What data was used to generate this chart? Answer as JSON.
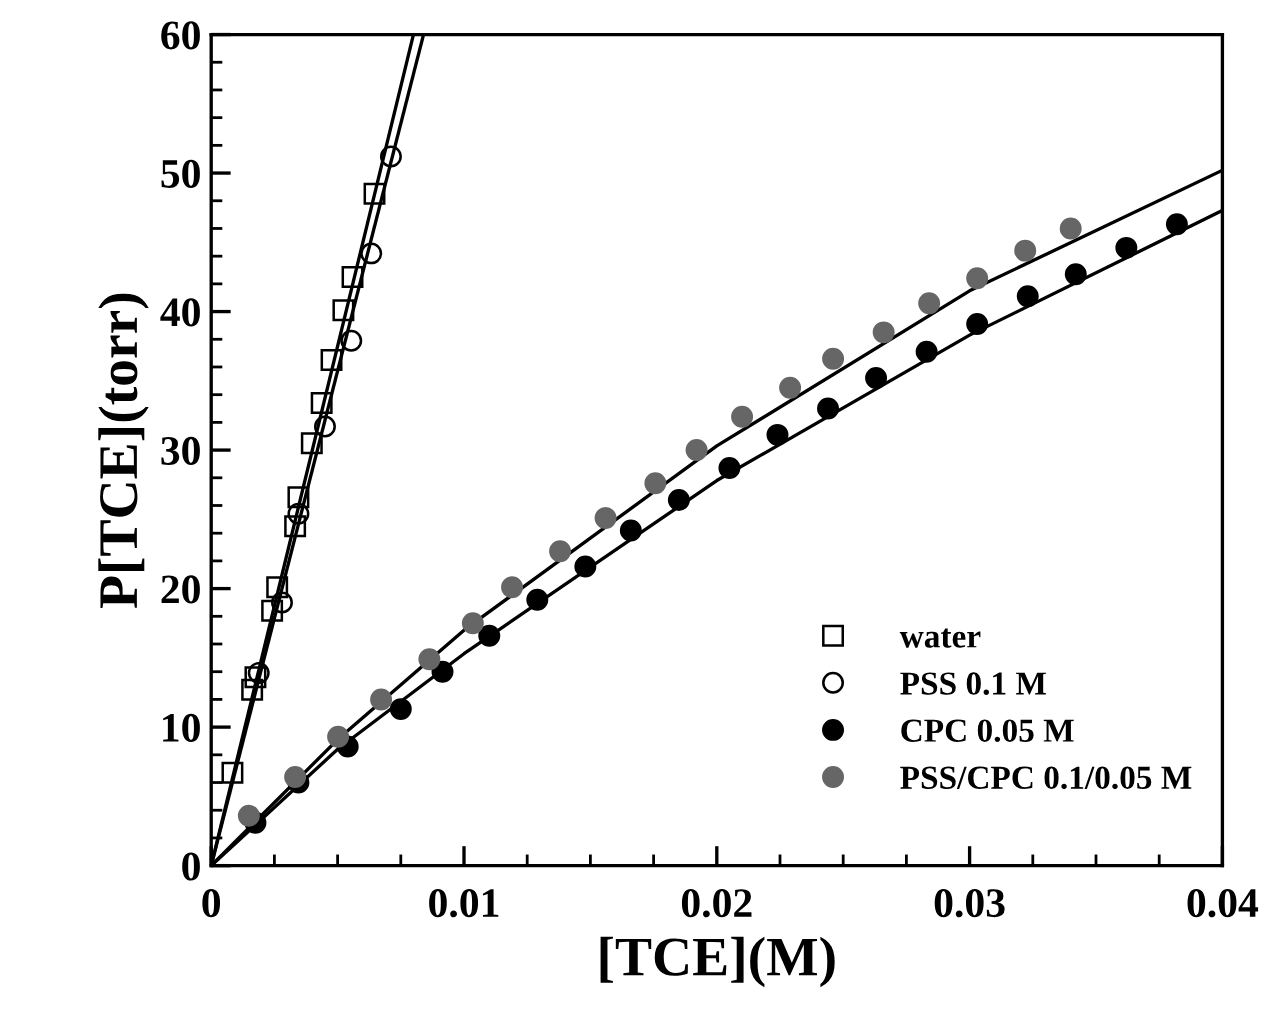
{
  "chart_data": {
    "type": "scatter",
    "xlabel": "[TCE](M)",
    "ylabel": "P[TCE](torr)",
    "xlim": [
      0,
      0.04
    ],
    "ylim": [
      0,
      60
    ],
    "xticks": [
      0,
      {
        "value": 0.0025,
        "label": null
      },
      {
        "value": 0.005,
        "label": null
      },
      {
        "value": 0.0075,
        "label": null
      },
      0.01,
      {
        "value": 0.0125,
        "label": null
      },
      {
        "value": 0.015,
        "label": null
      },
      {
        "value": 0.0175,
        "label": null
      },
      0.02,
      {
        "value": 0.0225,
        "label": null
      },
      {
        "value": 0.025,
        "label": null
      },
      {
        "value": 0.0275,
        "label": null
      },
      0.03,
      {
        "value": 0.0325,
        "label": null
      },
      {
        "value": 0.035,
        "label": null
      },
      {
        "value": 0.0375,
        "label": null
      },
      0.04
    ],
    "yticks": [
      0,
      {
        "value": 2,
        "label": null
      },
      {
        "value": 4,
        "label": null
      },
      {
        "value": 6,
        "label": null
      },
      {
        "value": 8,
        "label": null
      },
      10,
      {
        "value": 12,
        "label": null
      },
      {
        "value": 14,
        "label": null
      },
      {
        "value": 16,
        "label": null
      },
      {
        "value": 18,
        "label": null
      },
      20,
      {
        "value": 22,
        "label": null
      },
      {
        "value": 24,
        "label": null
      },
      {
        "value": 26,
        "label": null
      },
      {
        "value": 28,
        "label": null
      },
      30,
      {
        "value": 32,
        "label": null
      },
      {
        "value": 34,
        "label": null
      },
      {
        "value": 36,
        "label": null
      },
      {
        "value": 38,
        "label": null
      },
      40,
      {
        "value": 42,
        "label": null
      },
      {
        "value": 44,
        "label": null
      },
      {
        "value": 46,
        "label": null
      },
      {
        "value": 48,
        "label": null
      },
      50,
      {
        "value": 52,
        "label": null
      },
      {
        "value": 54,
        "label": null
      },
      {
        "value": 56,
        "label": null
      },
      {
        "value": 58,
        "label": null
      },
      60
    ],
    "grid": false,
    "legend": "bottom right",
    "series": [
      {
        "name": "water",
        "marker": "square",
        "color": "#000000",
        "x": [
          0.00084,
          0.00162,
          0.00175,
          0.00241,
          0.00261,
          0.00332,
          0.00345,
          0.00398,
          0.00437,
          0.00476,
          0.00523,
          0.00559,
          0.00646
        ],
        "values": [
          6.7,
          12.7,
          13.6,
          18.4,
          20.1,
          24.5,
          26.6,
          30.5,
          33.4,
          36.5,
          40.1,
          42.5,
          48.5
        ]
      },
      {
        "name": "PSS 0.1 M",
        "marker": "circle",
        "color": "#000000",
        "x": [
          0.00188,
          0.0028,
          0.00345,
          0.0045,
          0.00554,
          0.00633,
          0.00711
        ],
        "values": [
          13.9,
          19.0,
          25.4,
          31.7,
          37.9,
          44.2,
          51.2
        ]
      },
      {
        "name": "CPC 0.05 M",
        "marker": "circle",
        "color": "#000000",
        "x": [
          0.00175,
          0.00345,
          0.0054,
          0.0075,
          0.00915,
          0.011,
          0.0129,
          0.0148,
          0.0166,
          0.0185,
          0.0205,
          0.0224,
          0.0244,
          0.0263,
          0.0283,
          0.0303,
          0.0323,
          0.0342,
          0.0362,
          0.0382
        ],
        "values": [
          3.1,
          6.0,
          8.6,
          11.3,
          14.0,
          16.6,
          19.2,
          21.6,
          24.2,
          26.4,
          28.7,
          31.1,
          33.0,
          35.2,
          37.1,
          39.1,
          41.1,
          42.7,
          44.6,
          46.3
        ]
      },
      {
        "name": "PSS/CPC 0.1/0.05 M",
        "marker": "circle",
        "color": "#666666",
        "x": [
          0.00149,
          0.00332,
          0.00502,
          0.00672,
          0.00863,
          0.01035,
          0.0119,
          0.0138,
          0.0156,
          0.01757,
          0.0192,
          0.021,
          0.0229,
          0.0246,
          0.0266,
          0.0284,
          0.0303,
          0.0322,
          0.034
        ],
        "values": [
          3.6,
          6.4,
          9.3,
          12.0,
          14.9,
          17.5,
          20.1,
          22.7,
          25.1,
          27.6,
          30.0,
          32.4,
          34.5,
          36.6,
          38.5,
          40.6,
          42.4,
          44.4,
          46.0
        ]
      },
      {
        "type": "line",
        "color": "#000000",
        "x": [
          0,
          0.008
        ],
        "values": [
          0,
          60
        ]
      },
      {
        "type": "line",
        "color": "#000000",
        "x": [
          0,
          0.0084
        ],
        "values": [
          0,
          60
        ]
      },
      {
        "type": "line",
        "color": "#000000",
        "x": [
          0,
          0.005,
          0.01,
          0.02,
          0.03,
          0.04
        ],
        "values": [
          0,
          8.4,
          15.3,
          27.8,
          38.3,
          47.3
        ]
      },
      {
        "type": "line",
        "color": "#000000",
        "x": [
          0,
          0.005,
          0.01,
          0.02,
          0.03,
          0.04
        ],
        "values": [
          0,
          9.1,
          17.0,
          30.3,
          41.5,
          50.2
        ]
      }
    ]
  }
}
